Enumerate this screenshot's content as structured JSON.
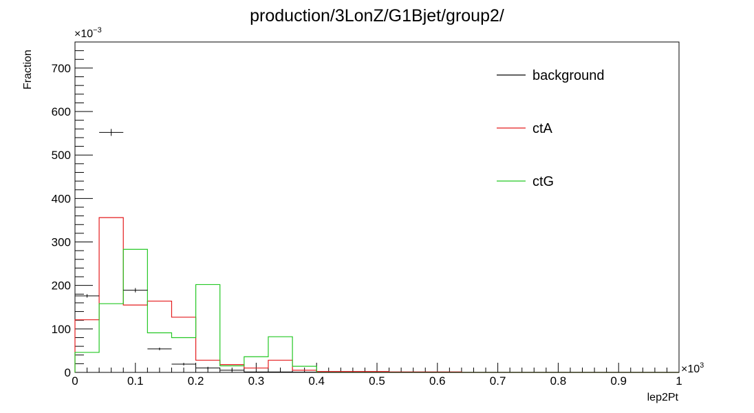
{
  "chart_data": {
    "type": "histogram",
    "title": "production/3LonZ/G1Bjet/group2/",
    "xlabel": "lep2Pt",
    "ylabel": "Fraction",
    "x_multiplier": "×10",
    "x_multiplier_exp": "3",
    "y_multiplier": "×10",
    "y_multiplier_exp": "−3",
    "xlim": [
      0,
      1
    ],
    "ylim": [
      0,
      760
    ],
    "x_ticks": [
      "0",
      "0.1",
      "0.2",
      "0.3",
      "0.4",
      "0.5",
      "0.6",
      "0.7",
      "0.8",
      "0.9",
      "1"
    ],
    "y_ticks": [
      "0",
      "100",
      "200",
      "300",
      "400",
      "500",
      "600",
      "700"
    ],
    "bin_edges": [
      0,
      0.04,
      0.08,
      0.12,
      0.16,
      0.2,
      0.24,
      0.28,
      0.32,
      0.36,
      0.4,
      0.44,
      0.48,
      0.52,
      0.56,
      0.6,
      0.64,
      0.68,
      0.72,
      0.76,
      0.8,
      0.84,
      0.88,
      0.92,
      0.96,
      1.0
    ],
    "series": [
      {
        "name": "background",
        "style": "points",
        "color": "#000000",
        "values": [
          176,
          552,
          189,
          54,
          19,
          10,
          5,
          1,
          1,
          0.5,
          0,
          0,
          0,
          0,
          0,
          0,
          0,
          0,
          0,
          0,
          0,
          0,
          0,
          0,
          0
        ],
        "errors": [
          4,
          8,
          5,
          3,
          3,
          3,
          2,
          1,
          0,
          0,
          0,
          0,
          0,
          0,
          0,
          0,
          0,
          0,
          0,
          0,
          0,
          0,
          0,
          0,
          0
        ]
      },
      {
        "name": "ctA",
        "style": "step",
        "color": "#e41a1c",
        "values": [
          121,
          356,
          155,
          164,
          127,
          28,
          18,
          10,
          28,
          5,
          2,
          2,
          2,
          1,
          1,
          1,
          0,
          0,
          0,
          0,
          0,
          0,
          0,
          0,
          0
        ]
      },
      {
        "name": "ctG",
        "style": "step",
        "color": "#22c722",
        "values": [
          46,
          158,
          283,
          91,
          80,
          202,
          15,
          36,
          82,
          14,
          0,
          0,
          0,
          0,
          0,
          0,
          0,
          0,
          0,
          0,
          0,
          0,
          0,
          0,
          0
        ]
      }
    ],
    "legend": {
      "position": "top-right",
      "entries": [
        "background",
        "ctA",
        "ctG"
      ]
    }
  }
}
